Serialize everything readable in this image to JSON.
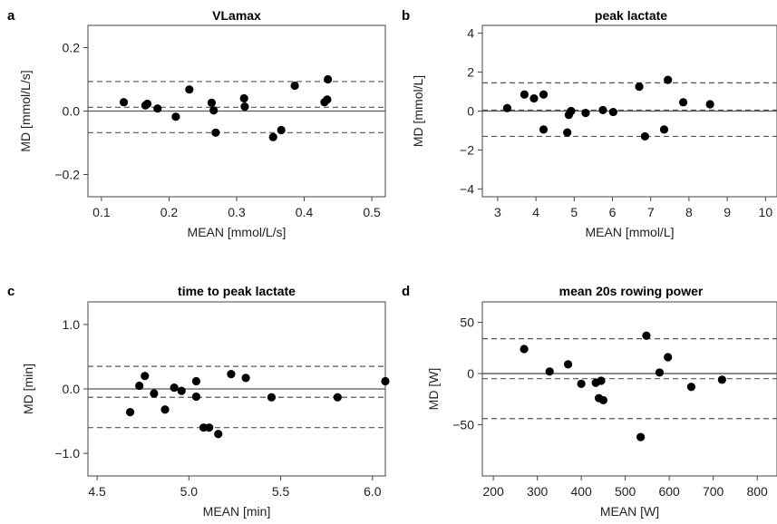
{
  "chart_data": [
    {
      "type": "scatter",
      "panel_letter": "a",
      "title": "VLamax",
      "xlabel": "MEAN [mmol/L/s]",
      "ylabel": "MD [mmol/L/s]",
      "xlim": [
        0.08,
        0.52
      ],
      "ylim": [
        -0.27,
        0.27
      ],
      "xticks": [
        0.1,
        0.2,
        0.3,
        0.4,
        0.5
      ],
      "xtick_labels": [
        "0.1",
        "0.2",
        "0.3",
        "0.4",
        "0.5"
      ],
      "yticks": [
        -0.2,
        0.0,
        0.2
      ],
      "ytick_labels": [
        "−0.2",
        "0.0",
        "0.2"
      ],
      "zero_line": 0,
      "reference_lines": [
        0.093,
        0.012,
        -0.068
      ],
      "x": [
        0.133,
        0.165,
        0.168,
        0.183,
        0.21,
        0.23,
        0.263,
        0.266,
        0.269,
        0.311,
        0.312,
        0.354,
        0.366,
        0.386,
        0.43,
        0.434,
        0.435
      ],
      "y": [
        0.028,
        0.018,
        0.023,
        0.008,
        -0.018,
        0.068,
        0.026,
        0.002,
        -0.068,
        0.04,
        0.014,
        -0.082,
        -0.06,
        0.08,
        0.028,
        0.036,
        0.1
      ]
    },
    {
      "type": "scatter",
      "panel_letter": "b",
      "title": "peak lactate",
      "xlabel": "MEAN [mmol/L]",
      "ylabel": "MD [mmol/L]",
      "xlim": [
        2.6,
        10.3
      ],
      "ylim": [
        -4.4,
        4.4
      ],
      "xticks": [
        3,
        4,
        5,
        6,
        7,
        8,
        9,
        10
      ],
      "xtick_labels": [
        "3",
        "4",
        "5",
        "6",
        "7",
        "8",
        "9",
        "10"
      ],
      "yticks": [
        -4,
        -2,
        0,
        2,
        4
      ],
      "ytick_labels": [
        "−4",
        "−2",
        "0",
        "2",
        "4"
      ],
      "zero_line": 0,
      "reference_lines": [
        1.45,
        0.05,
        -1.3
      ],
      "x": [
        3.25,
        3.7,
        3.95,
        4.2,
        4.2,
        4.82,
        4.86,
        4.92,
        5.3,
        5.75,
        6.02,
        6.7,
        6.85,
        7.35,
        7.45,
        7.85,
        8.55
      ],
      "y": [
        0.15,
        0.85,
        0.65,
        0.85,
        -0.95,
        -1.1,
        -0.2,
        0.0,
        -0.1,
        0.05,
        -0.05,
        1.25,
        -1.3,
        -0.95,
        1.6,
        0.45,
        0.35
      ]
    },
    {
      "type": "scatter",
      "panel_letter": "c",
      "title": "time to peak lactate",
      "xlabel": "MEAN [min]",
      "ylabel": "MD [min]",
      "xlim": [
        4.45,
        6.07
      ],
      "ylim": [
        -1.35,
        1.35
      ],
      "xticks": [
        4.5,
        5.0,
        5.5,
        6.0
      ],
      "xtick_labels": [
        "4.5",
        "5.0",
        "5.5",
        "6.0"
      ],
      "yticks": [
        -1.0,
        0.0,
        1.0
      ],
      "ytick_labels": [
        "−1.0",
        "0.0",
        "1.0"
      ],
      "zero_line": 0,
      "reference_lines": [
        0.35,
        -0.13,
        -0.6
      ],
      "x": [
        4.68,
        4.73,
        4.76,
        4.81,
        4.87,
        4.92,
        4.96,
        5.04,
        5.04,
        5.08,
        5.11,
        5.16,
        5.23,
        5.31,
        5.45,
        5.81,
        6.07
      ],
      "y": [
        -0.36,
        0.05,
        0.2,
        -0.07,
        -0.32,
        0.02,
        -0.03,
        -0.12,
        0.12,
        -0.6,
        -0.6,
        -0.7,
        0.23,
        0.17,
        -0.13,
        -0.13,
        0.12
      ]
    },
    {
      "type": "scatter",
      "panel_letter": "d",
      "title": "mean 20s rowing power",
      "xlabel": "MEAN [W]",
      "ylabel": "MD [W]",
      "xlim": [
        175,
        845
      ],
      "ylim": [
        -100,
        70
      ],
      "xticks": [
        200,
        300,
        400,
        500,
        600,
        700,
        800
      ],
      "xtick_labels": [
        "200",
        "300",
        "400",
        "500",
        "600",
        "700",
        "800"
      ],
      "yticks": [
        -50,
        0,
        50
      ],
      "ytick_labels": [
        "−50",
        "0",
        "50"
      ],
      "zero_line": 0,
      "reference_lines": [
        34,
        -5,
        -44
      ],
      "x": [
        270,
        328,
        370,
        400,
        433,
        440,
        445,
        450,
        535,
        548,
        578,
        597,
        650,
        720
      ],
      "y": [
        24,
        2,
        9,
        -10,
        -9,
        -24,
        -7,
        -26,
        -62,
        37,
        1,
        16,
        -13,
        -6
      ]
    }
  ]
}
